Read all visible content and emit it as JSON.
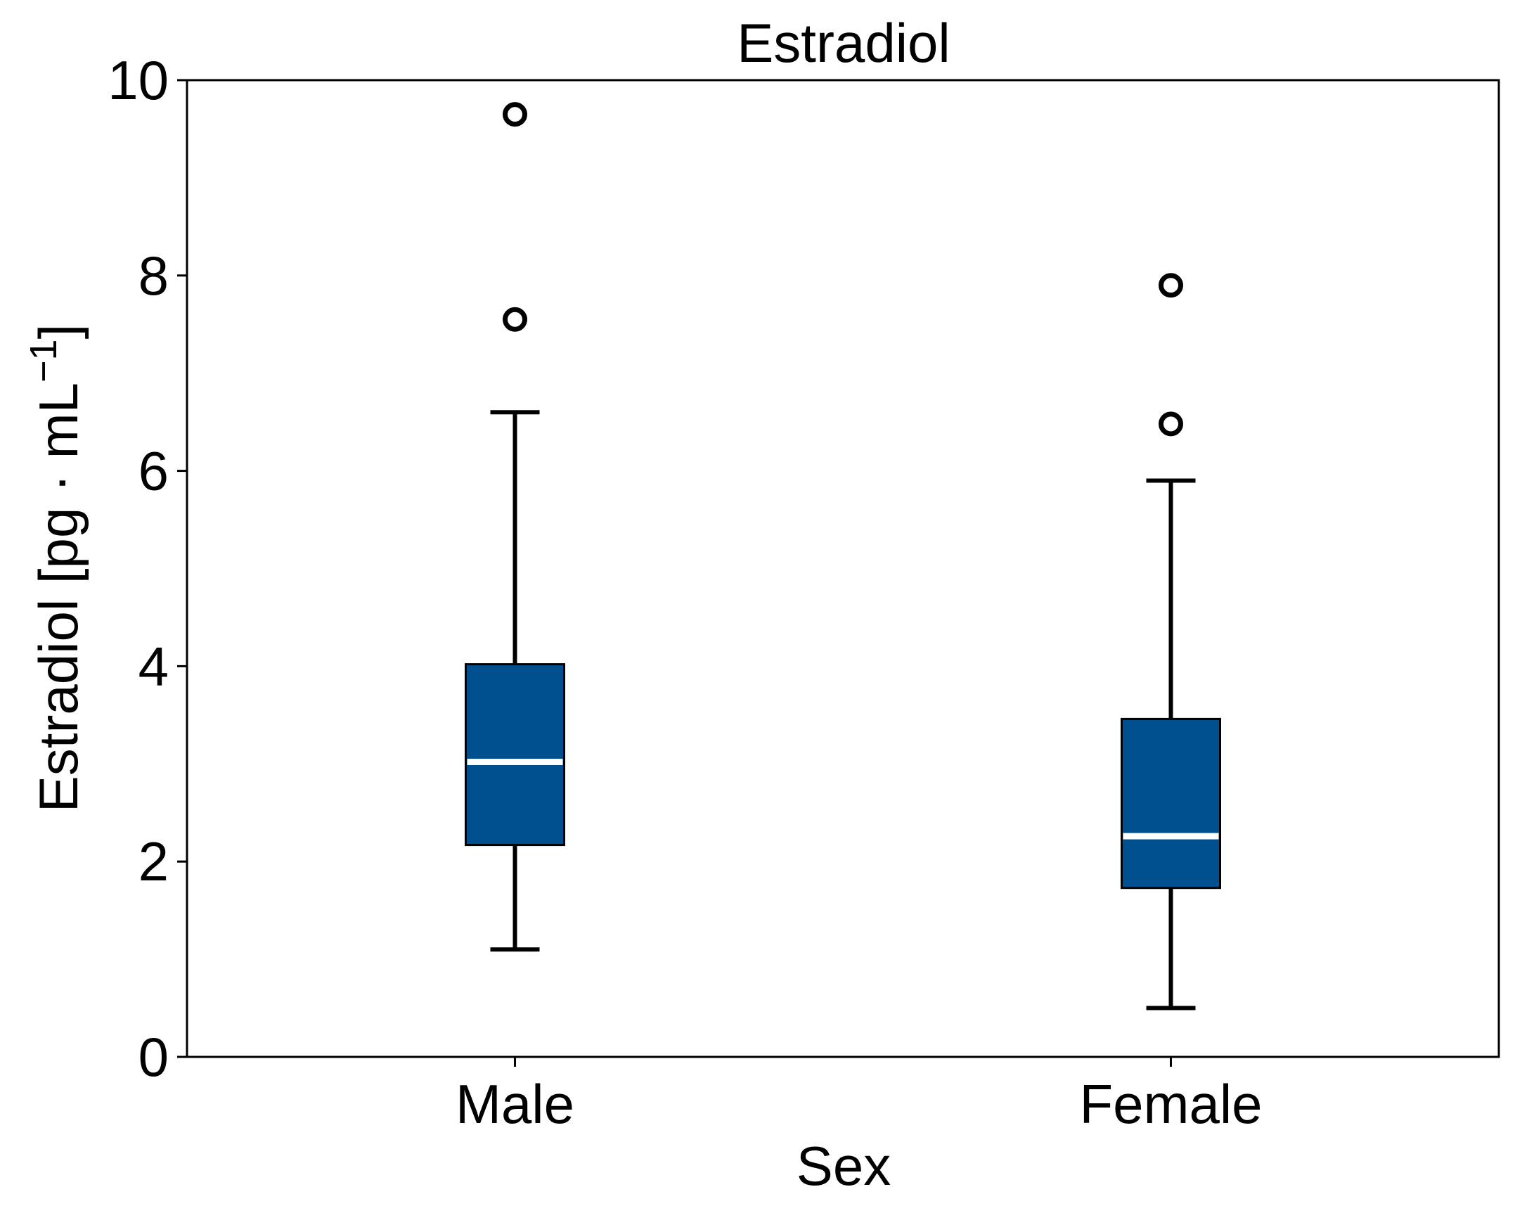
{
  "chart_data": {
    "type": "box",
    "title": "Estradiol",
    "xlabel": "Sex",
    "ylabel": "Estradiol [pg · mL",
    "ylabel_superscript": "−1",
    "ylabel_close": "]",
    "categories": [
      "Male",
      "Female"
    ],
    "ylim": [
      0,
      10
    ],
    "yticks": [
      0,
      2,
      4,
      6,
      8,
      10
    ],
    "boxes": [
      {
        "category": "Male",
        "whisker_low": 1.1,
        "q1": 2.17,
        "median": 3.02,
        "q3": 4.02,
        "whisker_high": 6.6,
        "outliers": [
          7.55,
          9.65
        ]
      },
      {
        "category": "Female",
        "whisker_low": 0.5,
        "q1": 1.73,
        "median": 2.26,
        "q3": 3.46,
        "whisker_high": 5.9,
        "outliers": [
          6.48,
          7.9
        ]
      }
    ],
    "box_fill": "#00508f",
    "median_color": "#ffffff",
    "line_color": "#000000",
    "grid": false,
    "legend": "none"
  }
}
